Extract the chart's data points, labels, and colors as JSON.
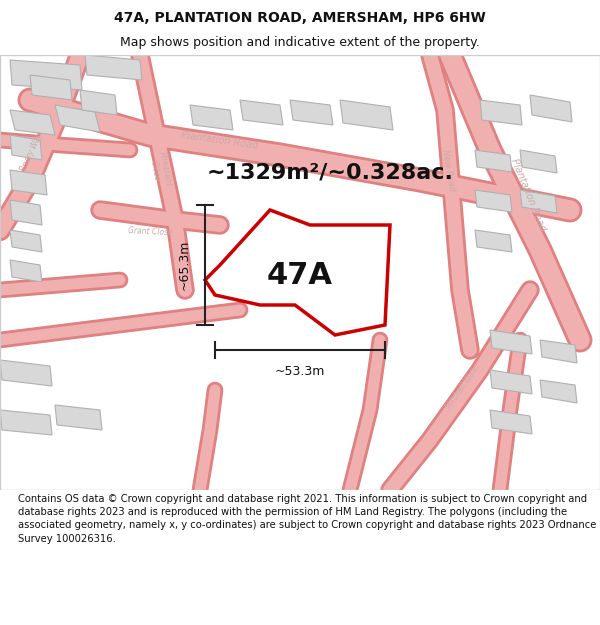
{
  "title_line1": "47A, PLANTATION ROAD, AMERSHAM, HP6 6HW",
  "title_line2": "Map shows position and indicative extent of the property.",
  "area_label": "~1329m²/~0.328ac.",
  "property_label": "47A",
  "dim_vertical": "~65.3m",
  "dim_horizontal": "~53.3m",
  "footer_text": "Contains OS data © Crown copyright and database right 2021. This information is subject to Crown copyright and database rights 2023 and is reproduced with the permission of HM Land Registry. The polygons (including the associated geometry, namely x, y co-ordinates) are subject to Crown copyright and database rights 2023 Ordnance Survey 100026316.",
  "map_bg": "#f5f5f5",
  "road_color": "#f0b0b0",
  "road_outline": "#e08080",
  "building_fill": "#d8d8d8",
  "building_outline": "#aaaaaa",
  "property_outline": "#cc0000",
  "property_fill": "#ffffff",
  "dim_line_color": "#222222",
  "title_color": "#111111",
  "label_color": "#111111",
  "footer_color": "#111111",
  "road_label_color": "#ccaaaa",
  "map_border_color": "#cccccc"
}
